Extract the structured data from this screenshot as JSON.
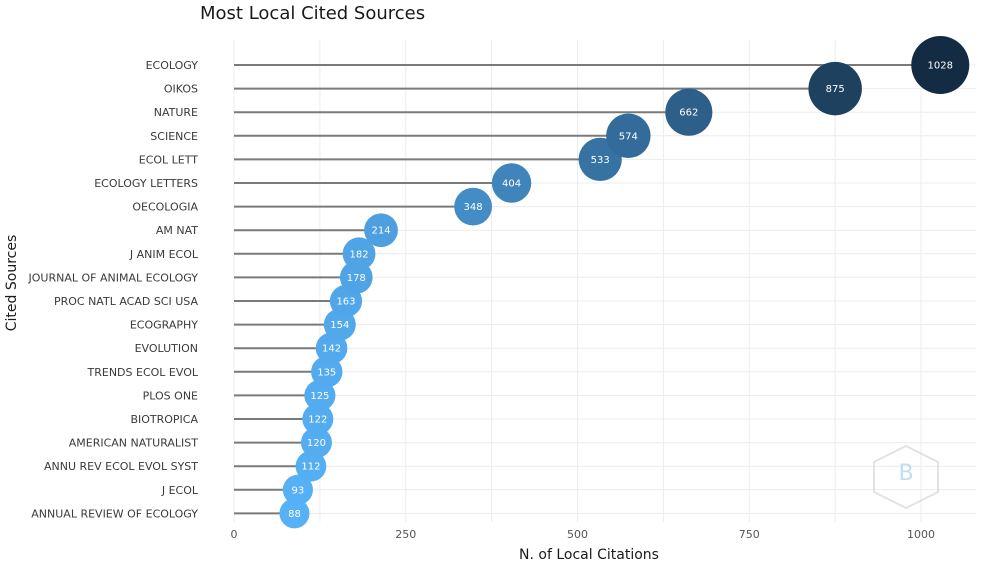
{
  "chart_data": {
    "type": "scatter",
    "title": "Most Local Cited Sources",
    "xlabel": "N. of Local Citations",
    "ylabel": "Cited Sources",
    "xlim": [
      0,
      1080
    ],
    "x_ticks": [
      0,
      250,
      500,
      750,
      1000
    ],
    "grid": true,
    "categories": [
      "ECOLOGY",
      "OIKOS",
      "NATURE",
      "SCIENCE",
      "ECOL LETT",
      "ECOLOGY LETTERS",
      "OECOLOGIA",
      "AM NAT",
      "J ANIM ECOL",
      "JOURNAL OF ANIMAL ECOLOGY",
      "PROC NATL ACAD SCI USA",
      "ECOGRAPHY",
      "EVOLUTION",
      "TRENDS ECOL EVOL",
      "PLOS ONE",
      "BIOTROPICA",
      "AMERICAN NATURALIST",
      "ANNU REV ECOL EVOL SYST",
      "J ECOL",
      "ANNUAL REVIEW OF ECOLOGY"
    ],
    "values": [
      1028,
      875,
      662,
      574,
      533,
      404,
      348,
      214,
      182,
      178,
      163,
      154,
      142,
      135,
      125,
      122,
      120,
      112,
      93,
      88
    ],
    "colors": {
      "low": "#56b1f7",
      "high": "#132b43"
    }
  }
}
